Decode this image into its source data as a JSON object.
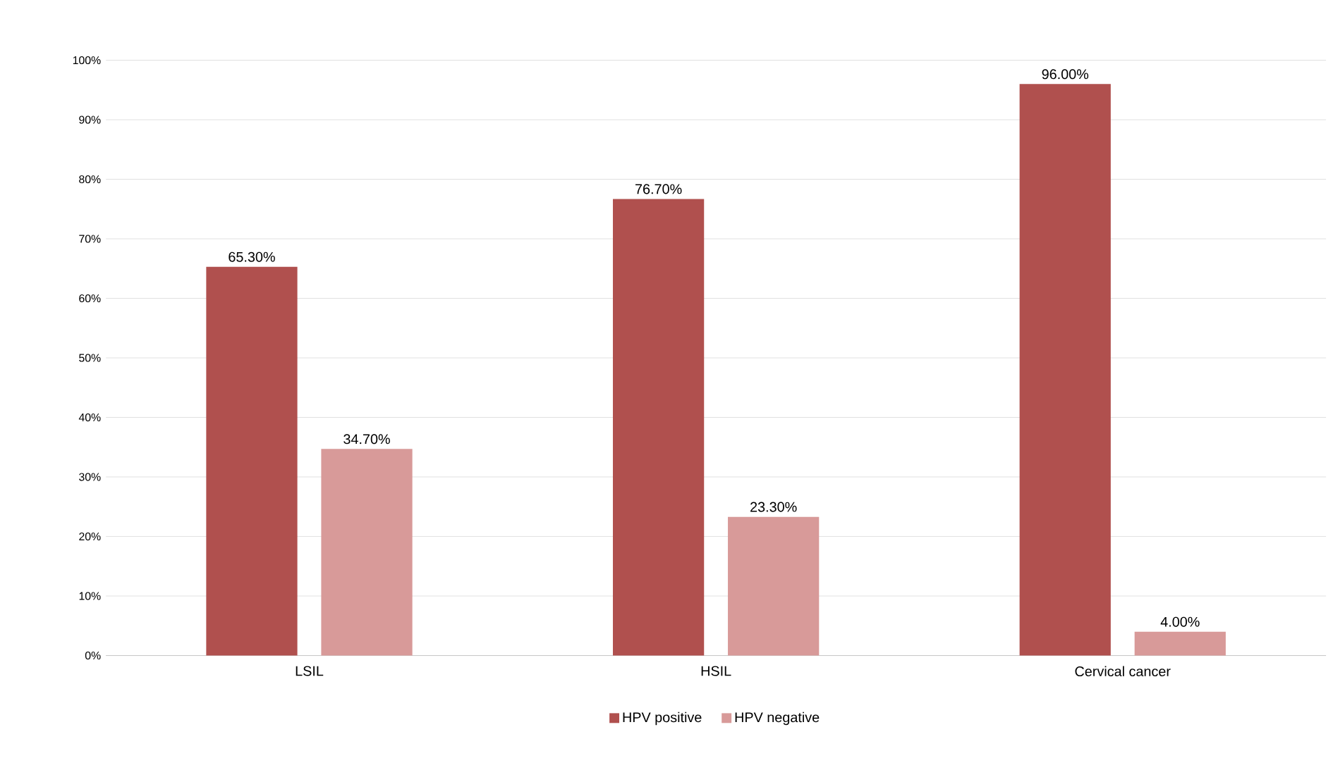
{
  "chart_data": {
    "type": "bar",
    "categories": [
      "LSIL",
      "HSIL",
      "Cervical cancer"
    ],
    "series": [
      {
        "name": "HPV positive",
        "color": "#b0504e",
        "values": [
          65.3,
          76.7,
          96.0
        ],
        "value_labels": [
          "65.30%",
          "76.70%",
          "96.00%"
        ]
      },
      {
        "name": "HPV negative",
        "color": "#d89a99",
        "values": [
          34.7,
          23.3,
          4.0
        ],
        "value_labels": [
          "34.70%",
          "23.30%",
          "4.00%"
        ]
      }
    ],
    "ylim": [
      0,
      100
    ],
    "yticks": [
      {
        "value": 0,
        "label": "0%"
      },
      {
        "value": 10,
        "label": "10%"
      },
      {
        "value": 20,
        "label": "20%"
      },
      {
        "value": 30,
        "label": "30%"
      },
      {
        "value": 40,
        "label": "40%"
      },
      {
        "value": 50,
        "label": "50%"
      },
      {
        "value": 60,
        "label": "60%"
      },
      {
        "value": 70,
        "label": "70%"
      },
      {
        "value": 80,
        "label": "80%"
      },
      {
        "value": 90,
        "label": "90%"
      },
      {
        "value": 100,
        "label": "100%"
      }
    ],
    "grid": "y",
    "legend": "bottom"
  }
}
